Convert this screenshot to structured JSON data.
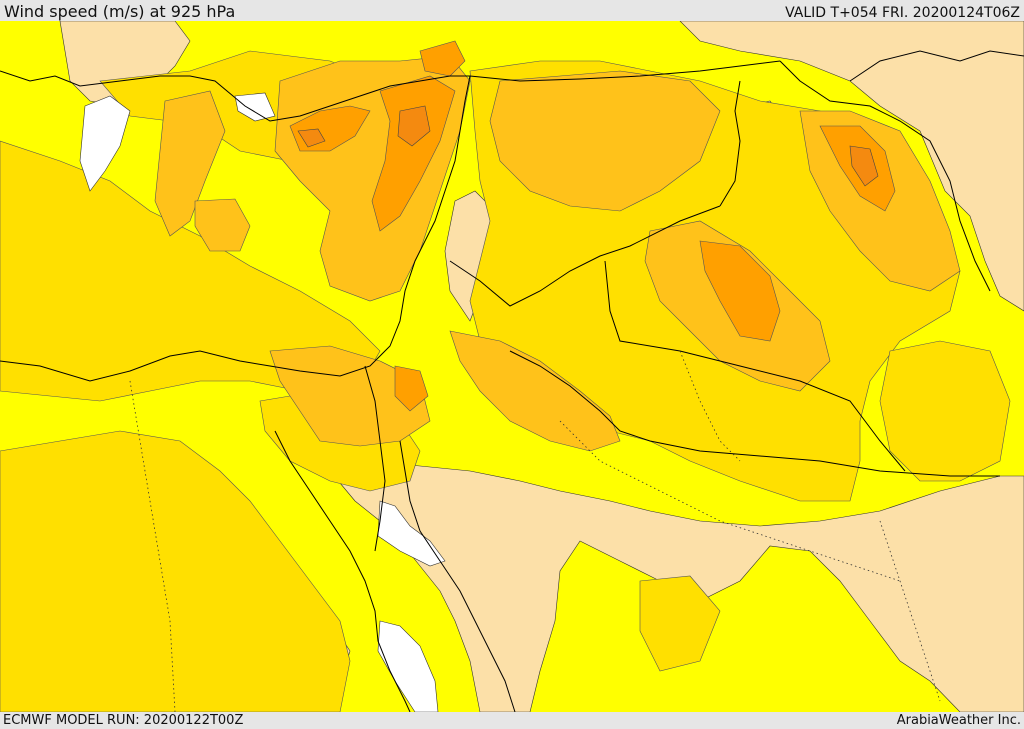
{
  "header": {
    "title": "Wind speed (m/s) at 925 hPa",
    "valid_time": "VALID T+054 FRI. 20200124T06Z"
  },
  "footer": {
    "model_run": "ECMWF MODEL RUN: 20200122T00Z",
    "credit": "ArabiaWeather Inc."
  },
  "map": {
    "variable": "wind speed",
    "units": "m/s",
    "level": "925 hPa",
    "shading_colors": {
      "calm_white": "#ffffff",
      "light_tan": "#fce0a8",
      "yellow": "#ffff00",
      "gold": "#ffe000",
      "amber": "#ffc21a",
      "orange": "#ffa000",
      "dark_orange": "#f48a10"
    },
    "boundary_color": "#000000"
  }
}
